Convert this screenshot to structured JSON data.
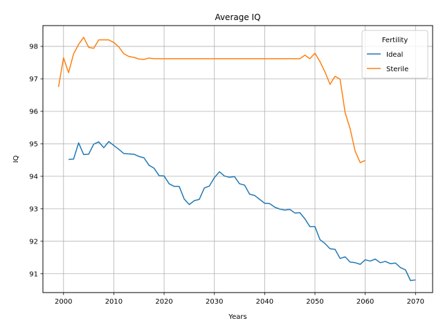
{
  "chart_data": {
    "type": "line",
    "title": "Average IQ",
    "xlabel": "Years",
    "ylabel": "IQ",
    "xlim": [
      1995.9,
      2073.4
    ],
    "ylim": [
      90.42,
      98.64
    ],
    "xticks": [
      2000,
      2010,
      2020,
      2030,
      2040,
      2050,
      2060,
      2070
    ],
    "yticks": [
      91,
      92,
      93,
      94,
      95,
      96,
      97,
      98
    ],
    "grid": true,
    "legend": {
      "title": "Fertility",
      "position": "upper-right"
    },
    "series": [
      {
        "name": "Ideal",
        "color": "#1f77b4",
        "points": [
          [
            2001,
            94.52
          ],
          [
            2002,
            94.53
          ],
          [
            2003,
            95.03
          ],
          [
            2004,
            94.67
          ],
          [
            2005,
            94.68
          ],
          [
            2006,
            94.99
          ],
          [
            2007,
            95.06
          ],
          [
            2008,
            94.88
          ],
          [
            2009,
            95.07
          ],
          [
            2010,
            94.95
          ],
          [
            2011,
            94.83
          ],
          [
            2012,
            94.7
          ],
          [
            2013,
            94.69
          ],
          [
            2014,
            94.68
          ],
          [
            2015,
            94.61
          ],
          [
            2016,
            94.57
          ],
          [
            2017,
            94.34
          ],
          [
            2018,
            94.25
          ],
          [
            2019,
            94.02
          ],
          [
            2020,
            94.01
          ],
          [
            2021,
            93.77
          ],
          [
            2022,
            93.69
          ],
          [
            2023,
            93.69
          ],
          [
            2024,
            93.3
          ],
          [
            2025,
            93.13
          ],
          [
            2026,
            93.25
          ],
          [
            2027,
            93.29
          ],
          [
            2028,
            93.64
          ],
          [
            2029,
            93.7
          ],
          [
            2030,
            93.96
          ],
          [
            2031,
            94.14
          ],
          [
            2032,
            94.01
          ],
          [
            2033,
            93.97
          ],
          [
            2034,
            93.99
          ],
          [
            2035,
            93.77
          ],
          [
            2036,
            93.73
          ],
          [
            2037,
            93.45
          ],
          [
            2038,
            93.41
          ],
          [
            2039,
            93.29
          ],
          [
            2040,
            93.17
          ],
          [
            2041,
            93.16
          ],
          [
            2042,
            93.05
          ],
          [
            2043,
            92.99
          ],
          [
            2044,
            92.96
          ],
          [
            2045,
            92.98
          ],
          [
            2046,
            92.87
          ],
          [
            2047,
            92.88
          ],
          [
            2048,
            92.69
          ],
          [
            2049,
            92.45
          ],
          [
            2050,
            92.45
          ],
          [
            2051,
            92.05
          ],
          [
            2052,
            91.93
          ],
          [
            2053,
            91.77
          ],
          [
            2054,
            91.75
          ],
          [
            2055,
            91.47
          ],
          [
            2056,
            91.52
          ],
          [
            2057,
            91.36
          ],
          [
            2058,
            91.34
          ],
          [
            2059,
            91.29
          ],
          [
            2060,
            91.43
          ],
          [
            2061,
            91.39
          ],
          [
            2062,
            91.45
          ],
          [
            2063,
            91.34
          ],
          [
            2064,
            91.38
          ],
          [
            2065,
            91.31
          ],
          [
            2066,
            91.33
          ],
          [
            2067,
            91.19
          ],
          [
            2068,
            91.12
          ],
          [
            2069,
            90.79
          ],
          [
            2070,
            90.81
          ]
        ]
      },
      {
        "name": "Sterile",
        "color": "#ff7f0e",
        "points": [
          [
            1999,
            96.75
          ],
          [
            2000,
            97.65
          ],
          [
            2001,
            97.19
          ],
          [
            2002,
            97.77
          ],
          [
            2003,
            98.06
          ],
          [
            2004,
            98.28
          ],
          [
            2005,
            97.97
          ],
          [
            2006,
            97.94
          ],
          [
            2007,
            98.2
          ],
          [
            2008,
            98.2
          ],
          [
            2009,
            98.2
          ],
          [
            2010,
            98.12
          ],
          [
            2011,
            97.98
          ],
          [
            2012,
            97.77
          ],
          [
            2013,
            97.69
          ],
          [
            2014,
            97.66
          ],
          [
            2015,
            97.61
          ],
          [
            2016,
            97.6
          ],
          [
            2017,
            97.64
          ],
          [
            2018,
            97.62
          ],
          [
            2019,
            97.62
          ],
          [
            2020,
            97.62
          ],
          [
            2021,
            97.62
          ],
          [
            2022,
            97.62
          ],
          [
            2023,
            97.62
          ],
          [
            2024,
            97.62
          ],
          [
            2025,
            97.62
          ],
          [
            2026,
            97.62
          ],
          [
            2027,
            97.62
          ],
          [
            2028,
            97.62
          ],
          [
            2029,
            97.62
          ],
          [
            2030,
            97.62
          ],
          [
            2031,
            97.62
          ],
          [
            2032,
            97.62
          ],
          [
            2033,
            97.62
          ],
          [
            2034,
            97.62
          ],
          [
            2035,
            97.62
          ],
          [
            2036,
            97.62
          ],
          [
            2037,
            97.62
          ],
          [
            2038,
            97.62
          ],
          [
            2039,
            97.62
          ],
          [
            2040,
            97.62
          ],
          [
            2041,
            97.62
          ],
          [
            2042,
            97.62
          ],
          [
            2043,
            97.62
          ],
          [
            2044,
            97.62
          ],
          [
            2045,
            97.62
          ],
          [
            2046,
            97.62
          ],
          [
            2047,
            97.62
          ],
          [
            2048,
            97.73
          ],
          [
            2049,
            97.62
          ],
          [
            2050,
            97.79
          ],
          [
            2051,
            97.53
          ],
          [
            2052,
            97.21
          ],
          [
            2053,
            96.83
          ],
          [
            2054,
            97.08
          ],
          [
            2055,
            96.99
          ],
          [
            2056,
            95.96
          ],
          [
            2057,
            95.46
          ],
          [
            2058,
            94.77
          ],
          [
            2059,
            94.42
          ],
          [
            2060,
            94.49
          ]
        ]
      }
    ]
  }
}
